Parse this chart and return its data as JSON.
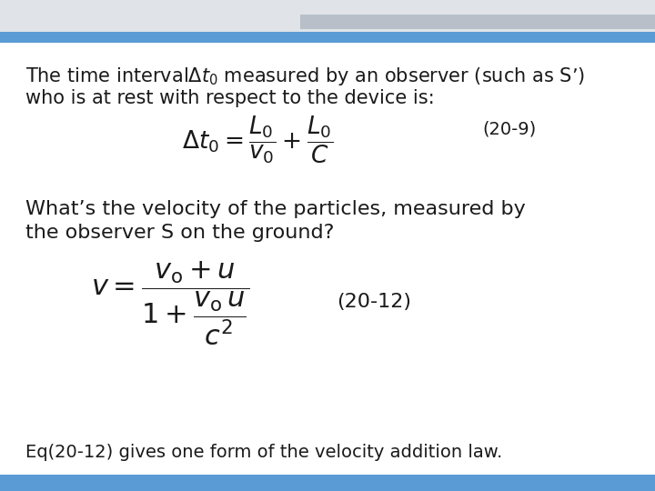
{
  "bg_color": "#ffffff",
  "top_grey_color": "#e0e4e8",
  "top_blue_color": "#5b9bd5",
  "bottom_blue_color": "#5b9bd5",
  "text_color": "#1a1a1a",
  "text1_line1": "The time interval$\\Delta t_0$ measured by an observer (such as S’)",
  "text1_line2": "who is at rest with respect to the device is:",
  "formula1": "$\\Delta t_0 = \\dfrac{L_0}{v_0} + \\dfrac{L_0}{C}$",
  "label1": "(20-9)",
  "text2_line1": "What’s the velocity of the particles, measured by",
  "text2_line2": "the observer S on the ground?",
  "formula2": "$v = \\dfrac{v_{\\mathrm{o}} + u}{1 + \\dfrac{v_{\\mathrm{o}}\\,u}{c^2}}$",
  "label2": "(20-12)",
  "text3": "Eq(20-12) gives one form of the velocity addition law.",
  "font_size_text": 15,
  "font_size_formula": 17,
  "font_size_label": 14
}
